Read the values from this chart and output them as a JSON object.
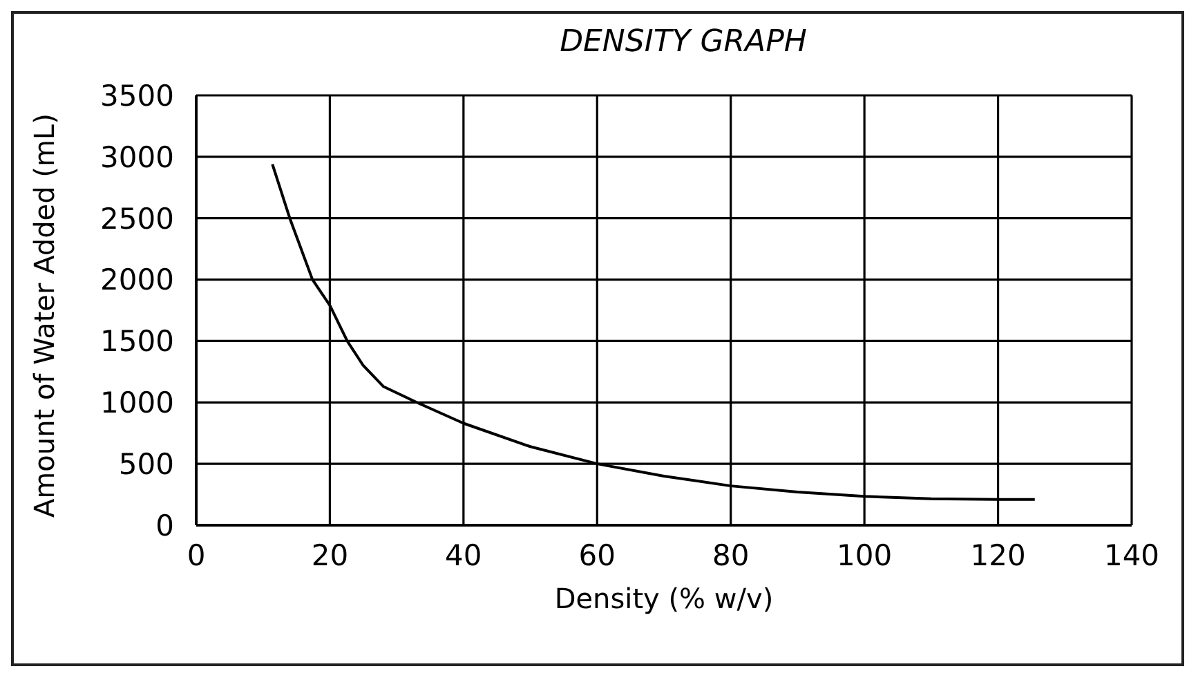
{
  "chart_data": {
    "type": "line",
    "title": "DENSITY GRAPH",
    "xlabel": "Density (% w/v)",
    "ylabel": "Amount of Water Added (mL)",
    "x": [
      11.4,
      14,
      17.4,
      20,
      22.6,
      25,
      28,
      33,
      40,
      50,
      60,
      70,
      80,
      90,
      100,
      110,
      120,
      125.5
    ],
    "series": [
      {
        "color": "#000000",
        "values": [
          2940,
          2500,
          2000,
          1790,
          1500,
          1300,
          1130,
          1000,
          830,
          640,
          500,
          400,
          320,
          270,
          235,
          215,
          210,
          210
        ]
      }
    ],
    "xlim": [
      0,
      140
    ],
    "xticks": [
      0,
      20,
      40,
      60,
      80,
      100,
      120,
      140
    ],
    "ylim": [
      0,
      3500
    ],
    "yticks": [
      0,
      500,
      1000,
      1500,
      2000,
      2500,
      3000,
      3500
    ],
    "grid": true,
    "marker": "none",
    "line_style": "solid"
  }
}
